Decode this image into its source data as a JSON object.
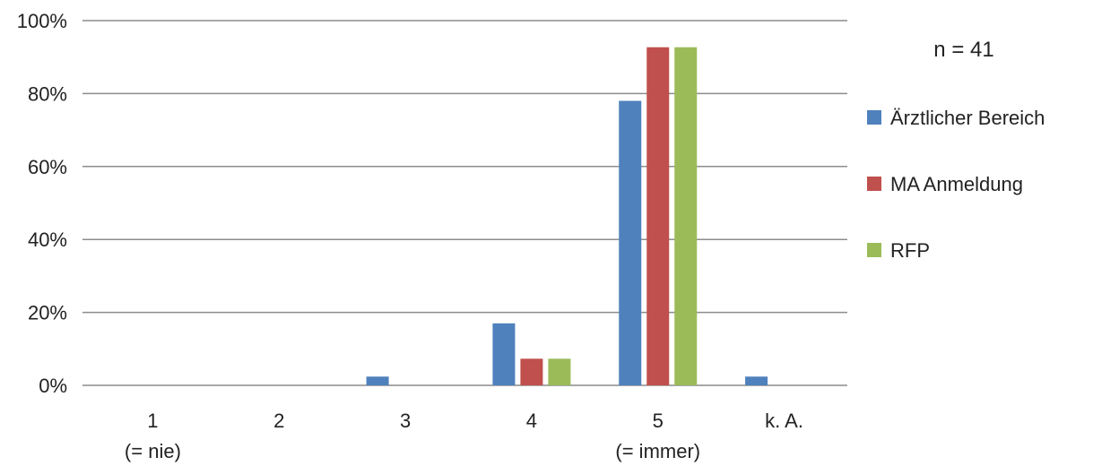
{
  "chart_data": {
    "type": "bar",
    "categories": [
      "1",
      "2",
      "3",
      "4",
      "5",
      "k. A."
    ],
    "category_sublabels": [
      "(= nie)",
      "",
      "",
      "",
      "(= immer)",
      ""
    ],
    "series": [
      {
        "name": "Ärztlicher Bereich",
        "color": "#4f81bd",
        "values": [
          0,
          0,
          2.4,
          17,
          78,
          2.4
        ]
      },
      {
        "name": "MA Anmeldung",
        "color": "#c0504d",
        "values": [
          0,
          0,
          0,
          7.3,
          92.7,
          0
        ]
      },
      {
        "name": "RFP",
        "color": "#9bbb59",
        "values": [
          0,
          0,
          0,
          7.3,
          92.7,
          0
        ]
      }
    ],
    "y_ticks": [
      "0%",
      "20%",
      "40%",
      "60%",
      "80%",
      "100%"
    ],
    "ylim": [
      0,
      100
    ],
    "grid": true,
    "legend_position": "right",
    "annotation": "n = 41"
  }
}
